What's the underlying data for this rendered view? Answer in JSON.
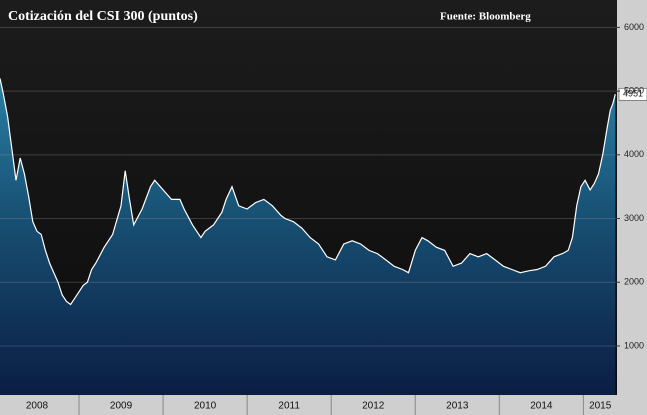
{
  "chart_data": {
    "type": "area-line",
    "title": "Cotización del CSI 300 (puntos)",
    "source": "Fuente: Bloomberg",
    "x": [
      2008.06,
      2008.1,
      2008.15,
      2008.2,
      2008.25,
      2008.3,
      2008.35,
      2008.4,
      2008.45,
      2008.5,
      2008.55,
      2008.6,
      2008.65,
      2008.7,
      2008.75,
      2008.8,
      2008.85,
      2008.9,
      2008.95,
      2009.0,
      2009.05,
      2009.1,
      2009.15,
      2009.2,
      2009.3,
      2009.4,
      2009.5,
      2009.55,
      2009.6,
      2009.65,
      2009.75,
      2009.85,
      2009.9,
      2010.0,
      2010.1,
      2010.2,
      2010.25,
      2010.35,
      2010.45,
      2010.5,
      2010.6,
      2010.7,
      2010.75,
      2010.82,
      2010.9,
      2011.0,
      2011.1,
      2011.2,
      2011.3,
      2011.4,
      2011.45,
      2011.55,
      2011.65,
      2011.75,
      2011.85,
      2011.95,
      2012.05,
      2012.15,
      2012.25,
      2012.35,
      2012.45,
      2012.55,
      2012.65,
      2012.75,
      2012.85,
      2012.92,
      2013.0,
      2013.08,
      2013.15,
      2013.25,
      2013.35,
      2013.45,
      2013.55,
      2013.65,
      2013.75,
      2013.85,
      2013.95,
      2014.05,
      2014.15,
      2014.25,
      2014.35,
      2014.45,
      2014.55,
      2014.65,
      2014.75,
      2014.82,
      2014.87,
      2014.92,
      2014.97,
      2015.02,
      2015.08,
      2015.13,
      2015.18,
      2015.23,
      2015.28,
      2015.32,
      2015.35,
      2015.38
    ],
    "values": [
      5200,
      4950,
      4600,
      4100,
      3600,
      3950,
      3700,
      3350,
      2950,
      2800,
      2750,
      2500,
      2300,
      2150,
      2000,
      1800,
      1700,
      1650,
      1750,
      1850,
      1950,
      2000,
      2200,
      2300,
      2550,
      2750,
      3200,
      3750,
      3300,
      2900,
      3150,
      3500,
      3600,
      3450,
      3300,
      3300,
      3150,
      2900,
      2700,
      2800,
      2900,
      3100,
      3300,
      3500,
      3200,
      3150,
      3250,
      3300,
      3200,
      3050,
      3000,
      2950,
      2850,
      2700,
      2600,
      2400,
      2350,
      2600,
      2650,
      2600,
      2500,
      2450,
      2350,
      2250,
      2200,
      2150,
      2500,
      2700,
      2650,
      2550,
      2500,
      2250,
      2300,
      2450,
      2400,
      2450,
      2350,
      2250,
      2200,
      2150,
      2180,
      2200,
      2250,
      2400,
      2450,
      2500,
      2700,
      3200,
      3500,
      3600,
      3450,
      3550,
      3700,
      4000,
      4400,
      4700,
      4800,
      4951
    ],
    "xlim": [
      2008.06,
      2015.4
    ],
    "ylim": [
      230,
      6430
    ],
    "yticks": [
      1000,
      2000,
      3000,
      4000,
      5000,
      6000
    ],
    "xticks": [
      {
        "value": 2008.5,
        "label": "2008"
      },
      {
        "value": 2009.5,
        "label": "2009"
      },
      {
        "value": 2010.5,
        "label": "2010"
      },
      {
        "value": 2011.5,
        "label": "2011"
      },
      {
        "value": 2012.5,
        "label": "2012"
      },
      {
        "value": 2013.5,
        "label": "2013"
      },
      {
        "value": 2014.5,
        "label": "2014"
      },
      {
        "value": 2015.2,
        "label": "2015"
      }
    ],
    "xminor_ticks": [
      2009,
      2010,
      2011,
      2012,
      2013,
      2014,
      2015
    ],
    "grid": true,
    "color": "#ffffff"
  }
}
